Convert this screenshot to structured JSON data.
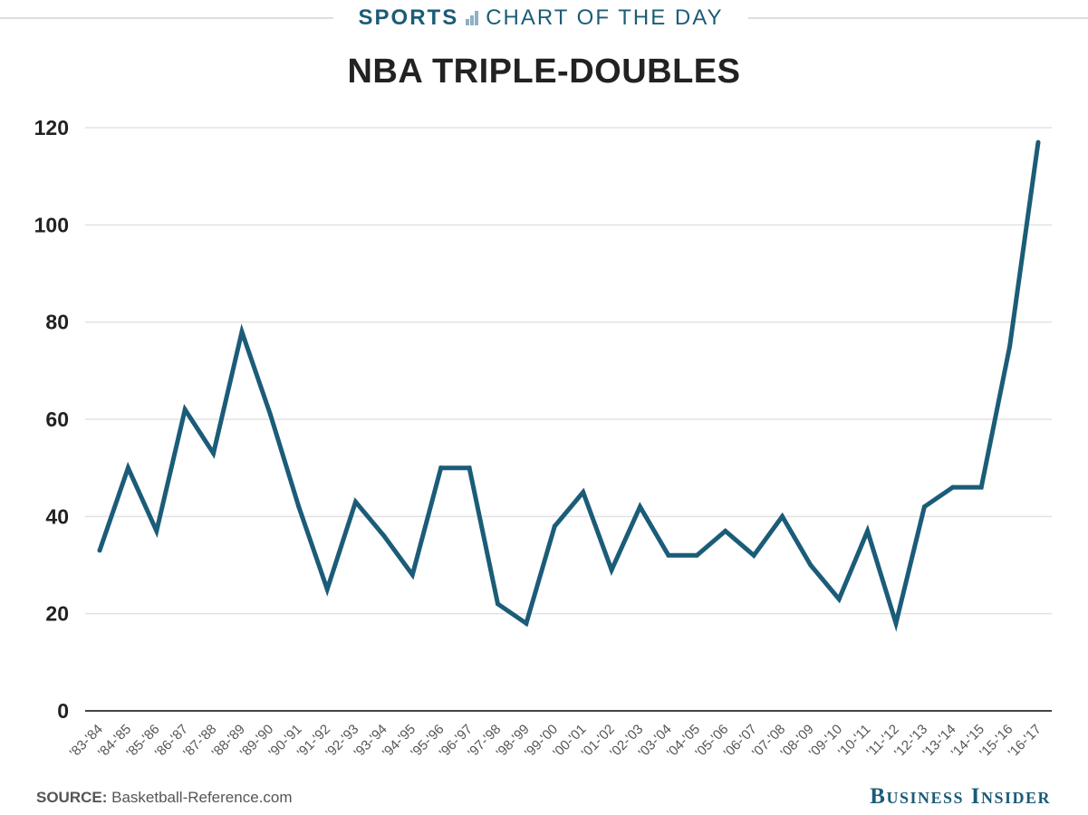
{
  "header": {
    "sports_label": "SPORTS",
    "section_label": "CHART OF THE DAY"
  },
  "source": {
    "label": "SOURCE:",
    "text": " Basketball-Reference.com"
  },
  "brand": "Business Insider",
  "colors": {
    "line": "#1b5c78",
    "grid": "#e2e2e2",
    "axis": "#444444",
    "text": "#222222"
  },
  "chart_data": {
    "type": "line",
    "title": "NBA TRIPLE-DOUBLES",
    "xlabel": "",
    "ylabel": "",
    "ylim": [
      0,
      120
    ],
    "yticks": [
      0,
      20,
      40,
      60,
      80,
      100,
      120
    ],
    "grid": true,
    "categories": [
      "'83-'84",
      "'84-'85",
      "'85-'86",
      "'86-'87",
      "'87-'88",
      "'88-'89",
      "'89-'90",
      "'90-'91",
      "'91-'92",
      "'92-'93",
      "'93-'94",
      "'94-'95",
      "'95-'96",
      "'96-'97",
      "'97-'98",
      "'98-'99",
      "'99-'00",
      "'00-'01",
      "'01-'02",
      "'02-'03",
      "'03-'04",
      "'04-'05",
      "'05-'06",
      "'06-'07",
      "'07-'08",
      "'08-'09",
      "'09-'10",
      "'10-'11",
      "'11-'12",
      "'12-'13",
      "'13-'14",
      "'14-'15",
      "'15-'16",
      "'16-'17"
    ],
    "values": [
      33,
      50,
      37,
      62,
      53,
      78,
      61,
      42,
      25,
      43,
      36,
      28,
      50,
      50,
      22,
      18,
      38,
      45,
      29,
      42,
      32,
      32,
      37,
      32,
      40,
      30,
      23,
      37,
      18,
      42,
      46,
      46,
      75,
      117
    ]
  }
}
